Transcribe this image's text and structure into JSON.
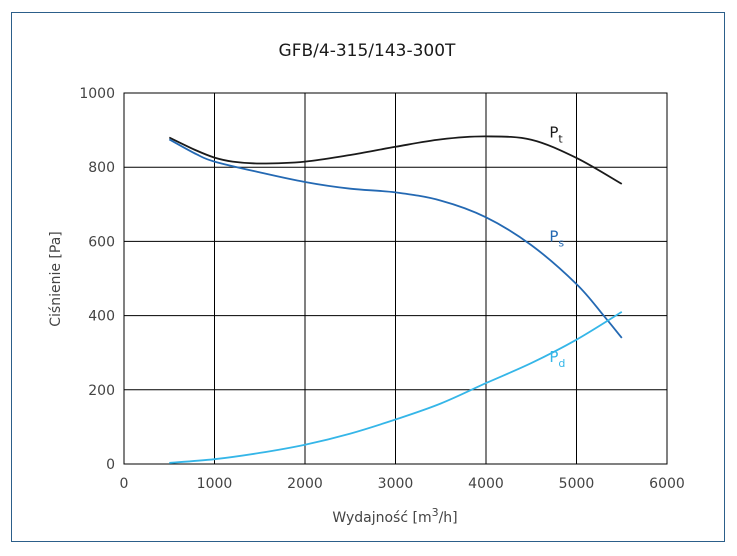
{
  "chart_data": {
    "type": "line",
    "title": "GFB/4-315/143-300T",
    "xlabel_main": "Wydajność [m",
    "xlabel_sup": "3",
    "xlabel_end": "/h]",
    "ylabel": "Ciśnienie [Pa]",
    "xlim": [
      0,
      6000
    ],
    "ylim": [
      0,
      1000
    ],
    "xticks": [
      0,
      1000,
      2000,
      3000,
      4000,
      5000,
      6000
    ],
    "yticks": [
      0,
      200,
      400,
      600,
      800,
      1000
    ],
    "grid": true,
    "series": [
      {
        "name": "P",
        "sub": "t",
        "color": "#1a1a1a",
        "label_at": [
          4700,
          880
        ],
        "points": [
          [
            500,
            880
          ],
          [
            800,
            845
          ],
          [
            1000,
            826
          ],
          [
            1200,
            815
          ],
          [
            1500,
            810
          ],
          [
            2000,
            815
          ],
          [
            2500,
            833
          ],
          [
            3000,
            855
          ],
          [
            3500,
            875
          ],
          [
            4000,
            883
          ],
          [
            4500,
            874
          ],
          [
            5000,
            825
          ],
          [
            5500,
            755
          ]
        ]
      },
      {
        "name": "P",
        "sub": "s",
        "color": "#2469b3",
        "label_at": [
          4700,
          600
        ],
        "points": [
          [
            500,
            875
          ],
          [
            800,
            835
          ],
          [
            1000,
            815
          ],
          [
            1500,
            786
          ],
          [
            2000,
            760
          ],
          [
            2500,
            742
          ],
          [
            3000,
            732
          ],
          [
            3500,
            710
          ],
          [
            4000,
            665
          ],
          [
            4500,
            590
          ],
          [
            5000,
            485
          ],
          [
            5300,
            400
          ],
          [
            5500,
            340
          ]
        ]
      },
      {
        "name": "P",
        "sub": "d",
        "color": "#35b6e8",
        "label_at": [
          4700,
          275
        ],
        "points": [
          [
            500,
            3
          ],
          [
            1000,
            13
          ],
          [
            1500,
            30
          ],
          [
            2000,
            52
          ],
          [
            2500,
            82
          ],
          [
            3000,
            120
          ],
          [
            3500,
            163
          ],
          [
            4000,
            218
          ],
          [
            4500,
            272
          ],
          [
            5000,
            335
          ],
          [
            5500,
            410
          ]
        ]
      }
    ]
  }
}
